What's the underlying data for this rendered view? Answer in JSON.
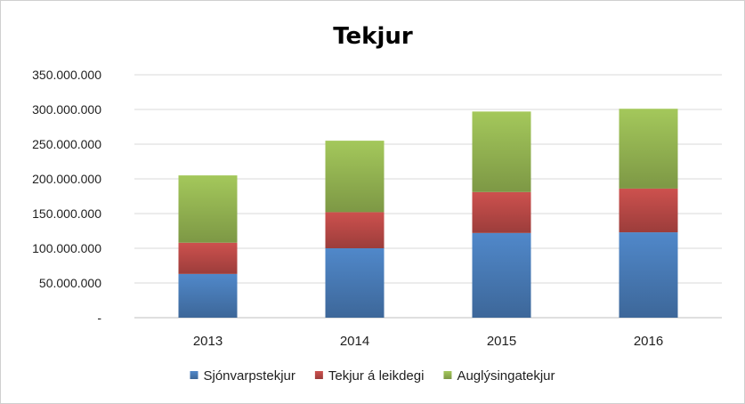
{
  "chart_data": {
    "type": "bar",
    "stacked": true,
    "title": "Tekjur",
    "xlabel": "",
    "ylabel": "",
    "categories": [
      "2013",
      "2014",
      "2015",
      "2016"
    ],
    "ylim": [
      0,
      350000000
    ],
    "ytick_values": [
      0,
      50000000,
      100000000,
      150000000,
      200000000,
      250000000,
      300000000,
      350000000
    ],
    "ytick_labels": [
      "-",
      "50.000.000",
      "100.000.000",
      "150.000.000",
      "200.000.000",
      "250.000.000",
      "300.000.000",
      "350.000.000"
    ],
    "grid": true,
    "legend_position": "bottom",
    "series": [
      {
        "name": "Sjónvarpstekjur",
        "color": "#4a7ebb",
        "values": [
          63000000,
          100000000,
          122000000,
          123000000
        ]
      },
      {
        "name": "Tekjur á leikdegi",
        "color": "#be4b48",
        "values": [
          45000000,
          52000000,
          59000000,
          63000000
        ]
      },
      {
        "name": "Auglýsingatekjur",
        "color": "#98b954",
        "values": [
          97000000,
          103000000,
          116000000,
          115000000
        ]
      }
    ]
  }
}
